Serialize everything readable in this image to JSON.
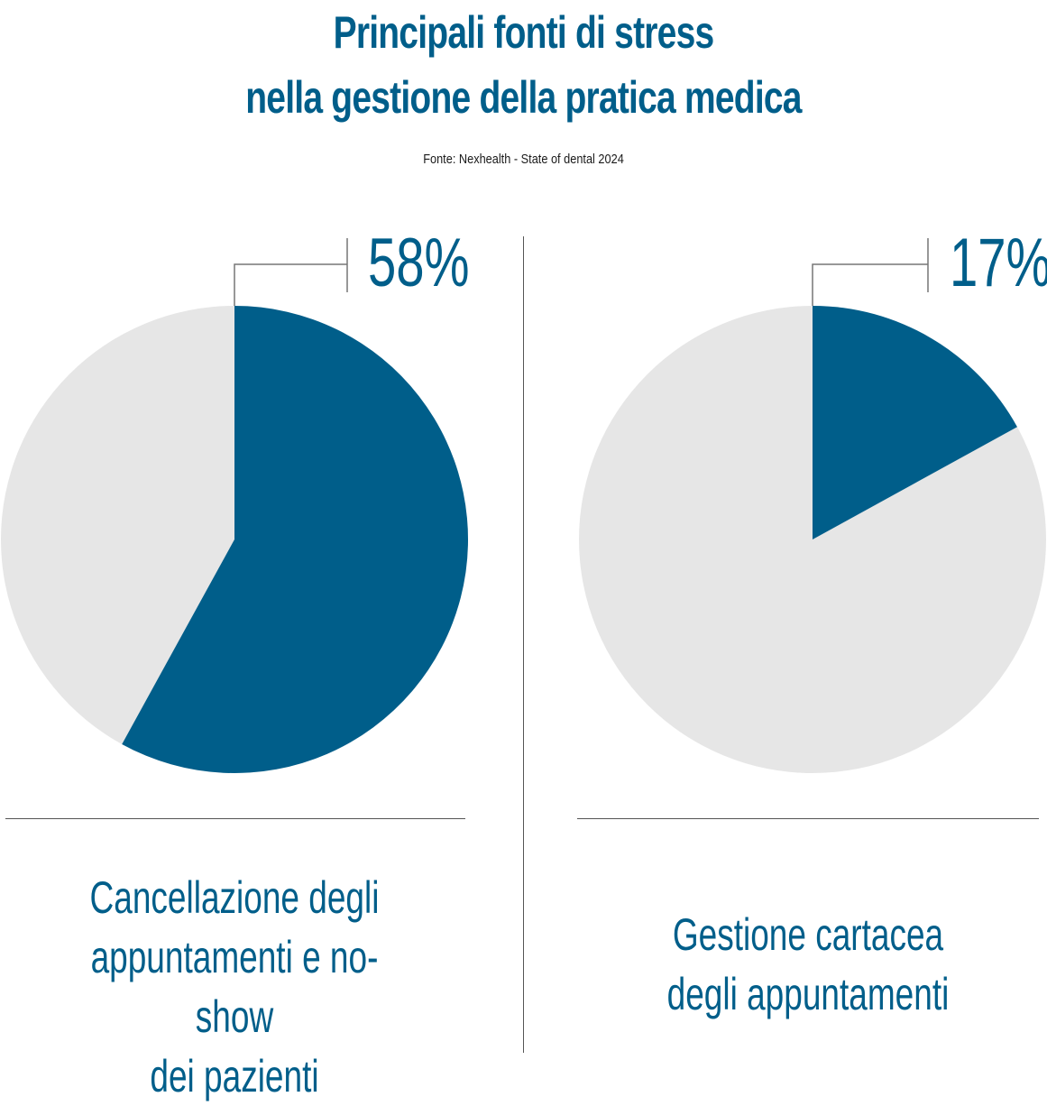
{
  "header": {
    "title_line1": "Principali fonti di stress",
    "title_line2": "nella gestione della pratica medica",
    "source": "Fonte: Nexhealth - State of dental 2024"
  },
  "colors": {
    "accent": "#005e8a",
    "remainder": "#e6e6e6",
    "rule": "#555555"
  },
  "chart_data": [
    {
      "type": "pie",
      "values": [
        58,
        42
      ],
      "value_label": "58%",
      "label_lines": [
        "Cancellazione degli",
        "appuntamenti e no-show",
        "dei pazienti"
      ]
    },
    {
      "type": "pie",
      "values": [
        17,
        83
      ],
      "value_label": "17%",
      "label_lines": [
        "Gestione cartacea",
        "degli appuntamenti"
      ]
    }
  ]
}
